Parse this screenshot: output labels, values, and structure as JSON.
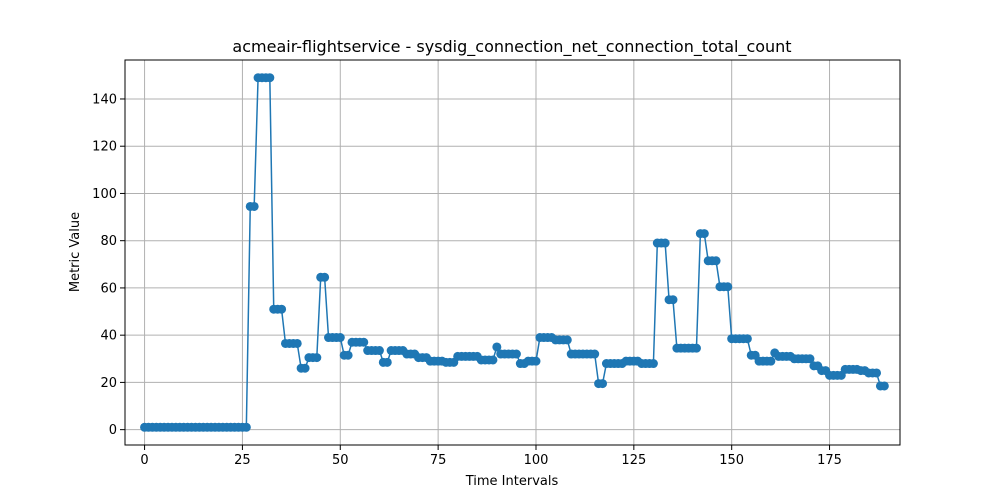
{
  "chart_data": {
    "type": "line",
    "title": "acmeair-flightservice - sysdig_connection_net_connection_total_count",
    "xlabel": "Time Intervals",
    "ylabel": "Metric Value",
    "xlim": [
      -5,
      193
    ],
    "ylim": [
      -6.5,
      156.5
    ],
    "xticks": [
      0,
      25,
      50,
      75,
      100,
      125,
      150,
      175
    ],
    "yticks": [
      0,
      20,
      40,
      60,
      80,
      100,
      120,
      140
    ],
    "grid": true,
    "marker": "circle",
    "color": "#1f77b4",
    "series": [
      {
        "name": "",
        "values": [
          1,
          1,
          1,
          1,
          1,
          1,
          1,
          1,
          1,
          1,
          1,
          1,
          1,
          1,
          1,
          1,
          1,
          1,
          1,
          1,
          1,
          1,
          1,
          1,
          1,
          1,
          1,
          94.5,
          94.5,
          149,
          149,
          149,
          149,
          51,
          51,
          51,
          36.5,
          36.5,
          36.5,
          36.5,
          26,
          26,
          30.5,
          30.5,
          30.5,
          64.5,
          64.5,
          39,
          39,
          39,
          39,
          31.5,
          31.5,
          37,
          37,
          37,
          37,
          33.5,
          33.5,
          33.5,
          33.5,
          28.5,
          28.5,
          33.5,
          33.5,
          33.5,
          33.5,
          32,
          32,
          32,
          30.5,
          30.5,
          30.5,
          29,
          29,
          29,
          29,
          28.5,
          28.5,
          28.5,
          31,
          31,
          31,
          31,
          31,
          31,
          29.5,
          29.5,
          29.5,
          29.5,
          35,
          32,
          32,
          32,
          32,
          32,
          28,
          28,
          29,
          29,
          29,
          39,
          39,
          39,
          39,
          38,
          38,
          38,
          38,
          32,
          32,
          32,
          32,
          32,
          32,
          32,
          19.5,
          19.5,
          28,
          28,
          28,
          28,
          28,
          29,
          29,
          29,
          29,
          28,
          28,
          28,
          28,
          79,
          79,
          79,
          55,
          55,
          34.5,
          34.5,
          34.5,
          34.5,
          34.5,
          34.5,
          83,
          83,
          71.5,
          71.5,
          71.5,
          60.5,
          60.5,
          60.5,
          38.5,
          38.5,
          38.5,
          38.5,
          38.5,
          31.5,
          31.5,
          29,
          29,
          29,
          29,
          32.5,
          31,
          31,
          31,
          31,
          30,
          30,
          30,
          30,
          30,
          27,
          27,
          25,
          25,
          23,
          23,
          23,
          23,
          25.5,
          25.5,
          25.5,
          25.5,
          25,
          25,
          24,
          24,
          24,
          18.5,
          18.5
        ]
      }
    ]
  }
}
